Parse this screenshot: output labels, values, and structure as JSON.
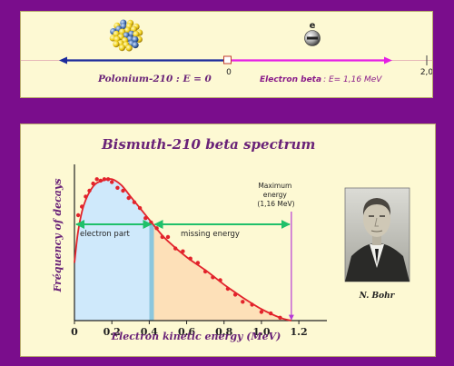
{
  "colors": {
    "frame": "#7a0d8c",
    "panel": "#fdf9d3",
    "axis_left": "#1b2a9c",
    "axis_right": "#e51ee5",
    "curve": "#e2232b",
    "dots": "#e2232b",
    "green_arrow": "#20c06a",
    "electron_region": "#cfe9fb",
    "missing_region": "#fde0b8",
    "divider": "#8cc7dd",
    "max_line": "#b63bd6",
    "title": "#6a2378"
  },
  "top": {
    "nucleus_label": "Polonium-210 : E = 0",
    "origin_label": "0",
    "end_label": "2,0",
    "electron_label_bold": "Electron beta",
    "electron_label_rest": ": E= 1,16 MeV",
    "electron_symbol": "e",
    "nucleus_icon": "polonium-nucleus-icon",
    "electron_icon": "electron-icon"
  },
  "bottom": {
    "portrait_caption": "N. Bohr",
    "portrait_icon": "niels-bohr-portrait"
  },
  "chart_data": {
    "type": "line",
    "title": "Bismuth-210 beta spectrum",
    "xlabel": "Electron kinetic energy (MeV)",
    "ylabel": "Fréquency of decays",
    "xlim": [
      0,
      1.35
    ],
    "ylim": [
      0,
      1.07
    ],
    "xticks": [
      "0",
      "0.2",
      "0.4",
      "0.6",
      "0.8",
      "1.0",
      "1.2"
    ],
    "xtick_values": [
      0,
      0.2,
      0.4,
      0.6,
      0.8,
      1.0,
      1.2
    ],
    "curve": {
      "x": [
        0,
        0.02,
        0.05,
        0.1,
        0.15,
        0.2,
        0.25,
        0.3,
        0.35,
        0.4,
        0.45,
        0.5,
        0.6,
        0.7,
        0.8,
        0.9,
        1.0,
        1.1,
        1.16
      ],
      "y": [
        0.4,
        0.62,
        0.8,
        0.93,
        0.97,
        0.98,
        0.94,
        0.86,
        0.78,
        0.7,
        0.62,
        0.55,
        0.44,
        0.35,
        0.25,
        0.16,
        0.08,
        0.02,
        0
      ]
    },
    "points": {
      "x": [
        0.02,
        0.04,
        0.06,
        0.08,
        0.1,
        0.12,
        0.14,
        0.16,
        0.18,
        0.2,
        0.23,
        0.26,
        0.29,
        0.32,
        0.35,
        0.38,
        0.41,
        0.44,
        0.47,
        0.5,
        0.54,
        0.58,
        0.62,
        0.66,
        0.7,
        0.74,
        0.78,
        0.82,
        0.86,
        0.9,
        0.95,
        1.0,
        1.05,
        1.1
      ],
      "y": [
        0.73,
        0.79,
        0.86,
        0.9,
        0.95,
        0.98,
        0.97,
        0.98,
        0.98,
        0.96,
        0.92,
        0.9,
        0.85,
        0.82,
        0.78,
        0.71,
        0.68,
        0.64,
        0.58,
        0.58,
        0.5,
        0.48,
        0.43,
        0.4,
        0.34,
        0.3,
        0.28,
        0.22,
        0.18,
        0.13,
        0.11,
        0.06,
        0.05,
        0.02
      ]
    },
    "electron_part": {
      "x_start": 0,
      "x_end": 0.42,
      "label": "electron part"
    },
    "missing_energy": {
      "x_start": 0.42,
      "x_end": 1.16,
      "label": "missing energy"
    },
    "max_energy": {
      "x": 1.16,
      "label_lines": [
        "Maximum",
        "energy",
        "(1,16 MeV)"
      ]
    }
  }
}
